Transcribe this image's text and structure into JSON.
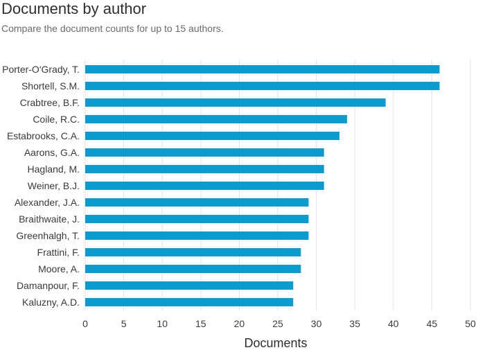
{
  "header": {
    "title": "Documents by author",
    "subtitle": "Compare the document counts for up to 15 authors."
  },
  "chart_data": {
    "type": "bar",
    "orientation": "horizontal",
    "title": "Documents by author",
    "subtitle": "Compare the document counts for up to 15 authors.",
    "xlabel": "Documents",
    "ylabel": "",
    "categories": [
      "Porter-O'Grady, T.",
      "Shortell, S.M.",
      "Crabtree, B.F.",
      "Coile, R.C.",
      "Estabrooks, C.A.",
      "Aarons, G.A.",
      "Hagland, M.",
      "Weiner, B.J.",
      "Alexander, J.A.",
      "Braithwaite, J.",
      "Greenhalgh, T.",
      "Frattini, F.",
      "Moore, A.",
      "Damanpour, F.",
      "Kaluzny, A.D."
    ],
    "values": [
      46,
      46,
      39,
      34,
      33,
      31,
      31,
      31,
      29,
      29,
      29,
      28,
      28,
      27,
      27
    ],
    "xlim": [
      0,
      50
    ],
    "xticks": [
      0,
      5,
      10,
      15,
      20,
      25,
      30,
      35,
      40,
      45,
      50
    ],
    "grid": "vertical",
    "bar_color": "#0a9bd1",
    "grid_color": "#e3e3e3"
  }
}
